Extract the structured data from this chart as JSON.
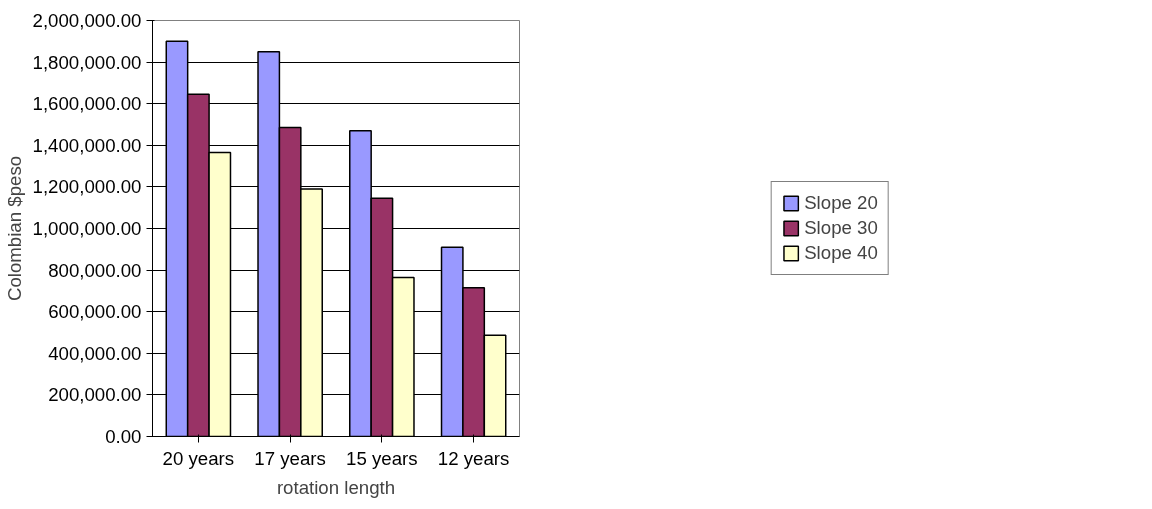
{
  "chart_data": {
    "type": "bar",
    "xlabel": "rotation length",
    "ylabel": "Colombian $peso",
    "categories": [
      "20 years",
      "17 years",
      "15 years",
      "12 years"
    ],
    "series": [
      {
        "name": "Slope 20",
        "color": "#9999ff",
        "values": [
          1900000,
          1850000,
          1470000,
          910000
        ]
      },
      {
        "name": "Slope 30",
        "color": "#993366",
        "values": [
          1645000,
          1485000,
          1145000,
          715000
        ]
      },
      {
        "name": "Slope 40",
        "color": "#ffffcc",
        "values": [
          1365000,
          1190000,
          765000,
          487000
        ]
      }
    ],
    "ylim": [
      0,
      2000000
    ],
    "yticks": [
      {
        "value": 0,
        "label": "0.00"
      },
      {
        "value": 200000,
        "label": "200,000.00"
      },
      {
        "value": 400000,
        "label": "400,000.00"
      },
      {
        "value": 600000,
        "label": "600,000.00"
      },
      {
        "value": 800000,
        "label": "800,000.00"
      },
      {
        "value": 1000000,
        "label": "1,000,000.00"
      },
      {
        "value": 1200000,
        "label": "1,200,000.00"
      },
      {
        "value": 1400000,
        "label": "1,400,000.00"
      },
      {
        "value": 1600000,
        "label": "1,600,000.00"
      },
      {
        "value": 1800000,
        "label": "1,800,000.00"
      },
      {
        "value": 2000000,
        "label": "2,000,000.00"
      }
    ],
    "grid": "y",
    "legend": "right"
  }
}
